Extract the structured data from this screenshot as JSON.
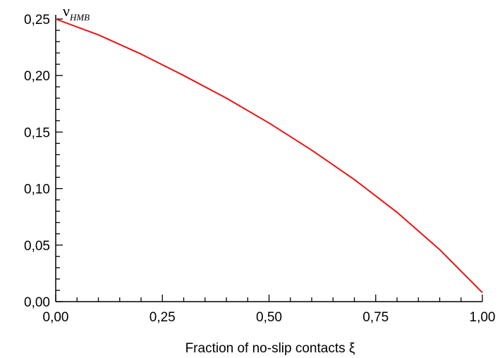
{
  "chart_data": {
    "type": "line",
    "xlabel": "Fraction of no-slip contacts ξ",
    "ylabel": {
      "main": "ν",
      "sub": "HMB"
    },
    "xlim": [
      0,
      1
    ],
    "ylim": [
      0,
      0.25
    ],
    "x_ticks": [
      "0,00",
      "0,25",
      "0,50",
      "0,75",
      "1,00"
    ],
    "y_ticks": [
      "0,00",
      "0,05",
      "0,10",
      "0,15",
      "0,20",
      "0,25"
    ],
    "grid": false,
    "series": [
      {
        "color": "#ee1111",
        "x": [
          0.0,
          0.1,
          0.2,
          0.3,
          0.4,
          0.5,
          0.6,
          0.7,
          0.8,
          0.9,
          1.0
        ],
        "y": [
          0.25,
          0.236,
          0.219,
          0.2,
          0.18,
          0.158,
          0.134,
          0.108,
          0.079,
          0.046,
          0.008
        ]
      }
    ]
  }
}
